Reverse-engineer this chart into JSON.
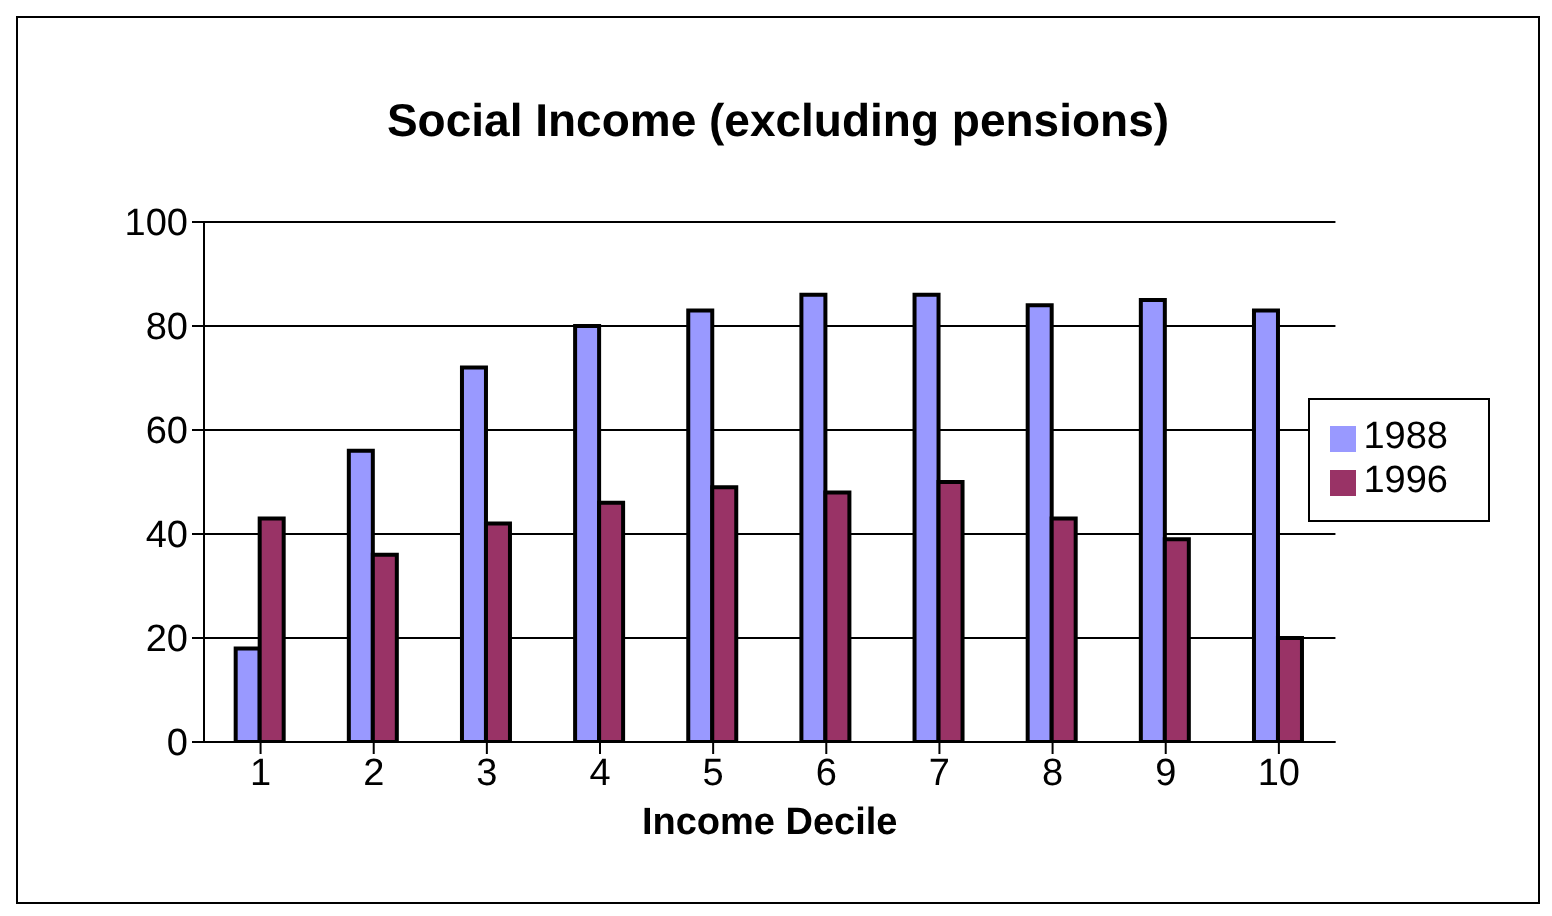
{
  "chart_data": {
    "type": "bar",
    "title": "Social Income (excluding pensions)",
    "xlabel": "Income Decile",
    "categories": [
      "1",
      "2",
      "3",
      "4",
      "5",
      "6",
      "7",
      "8",
      "9",
      "10"
    ],
    "series": [
      {
        "name": "1988",
        "color": "#9999ff",
        "values": [
          18,
          56,
          72,
          80,
          83,
          86,
          86,
          84,
          85,
          83
        ]
      },
      {
        "name": "1996",
        "color": "#993366",
        "values": [
          43,
          36,
          42,
          46,
          49,
          48,
          50,
          43,
          39,
          20
        ]
      }
    ],
    "ylim": [
      0,
      100
    ],
    "yticks": [
      0,
      20,
      40,
      60,
      80,
      100
    ],
    "grid": "y",
    "legend": "right"
  }
}
